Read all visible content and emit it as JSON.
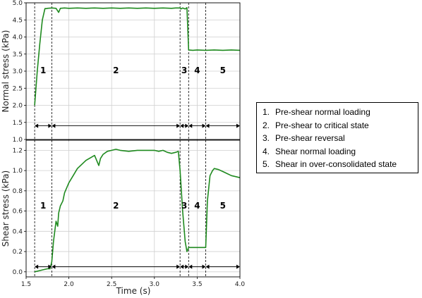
{
  "chart_data": [
    {
      "type": "line",
      "xlabel": "",
      "ylabel": "Normal stress (kPa)",
      "xlim": [
        1.5,
        4.0
      ],
      "ylim": [
        1.0,
        5.0
      ],
      "grid": true,
      "x_ticks": [
        "1.5",
        "2.0",
        "2.5",
        "3.0",
        "3.5",
        "4.0"
      ],
      "y_ticks": [
        "1.0",
        "1.5",
        "2.0",
        "2.5",
        "3.0",
        "3.5",
        "4.0",
        "4.5",
        "5.0"
      ],
      "color": "#1f8a1f",
      "series": [
        {
          "x": [
            1.6,
            1.63,
            1.66,
            1.69,
            1.72,
            1.74,
            1.75,
            1.8,
            1.85,
            1.88,
            1.9,
            1.95,
            2.0,
            2.1,
            2.2,
            2.3,
            2.4,
            2.5,
            2.6,
            2.7,
            2.8,
            2.9,
            3.0,
            3.1,
            3.2,
            3.25,
            3.3,
            3.31,
            3.33,
            3.36,
            3.38,
            3.4,
            3.45,
            3.5,
            3.6,
            3.7,
            3.8,
            3.9,
            4.0
          ],
          "y": [
            2.0,
            3.0,
            3.8,
            4.5,
            4.83,
            4.83,
            4.84,
            4.85,
            4.84,
            4.72,
            4.84,
            4.85,
            4.84,
            4.85,
            4.84,
            4.85,
            4.84,
            4.85,
            4.84,
            4.85,
            4.84,
            4.85,
            4.84,
            4.85,
            4.84,
            4.85,
            4.85,
            4.82,
            4.85,
            4.82,
            4.86,
            3.62,
            3.61,
            3.62,
            3.61,
            3.62,
            3.61,
            3.62,
            3.61
          ]
        }
      ],
      "phases": [
        {
          "label": "1",
          "x0": 1.6,
          "x1": 1.8
        },
        {
          "label": "2",
          "x0": 1.8,
          "x1": 3.3
        },
        {
          "label": "3",
          "x0": 3.3,
          "x1": 3.4
        },
        {
          "label": "4",
          "x0": 3.4,
          "x1": 3.6
        },
        {
          "label": "5",
          "x0": 3.6,
          "x1": 4.0
        }
      ],
      "phase_arrow_y": 1.4
    },
    {
      "type": "line",
      "xlabel": "Time (s)",
      "ylabel": "Shear stress (kPa)",
      "xlim": [
        1.5,
        4.0
      ],
      "ylim": [
        -0.05,
        1.3
      ],
      "grid": true,
      "x_ticks": [
        "1.5",
        "2.0",
        "2.5",
        "3.0",
        "3.5",
        "4.0"
      ],
      "y_ticks": [
        "0.0",
        "0.2",
        "0.4",
        "0.6",
        "0.8",
        "1.0",
        "1.2"
      ],
      "color": "#1f8a1f",
      "series": [
        {
          "x": [
            1.6,
            1.65,
            1.7,
            1.75,
            1.78,
            1.8,
            1.82,
            1.85,
            1.87,
            1.88,
            1.9,
            1.93,
            1.95,
            2.0,
            2.05,
            2.1,
            2.2,
            2.3,
            2.35,
            2.37,
            2.4,
            2.45,
            2.5,
            2.55,
            2.6,
            2.7,
            2.8,
            2.9,
            3.0,
            3.05,
            3.1,
            3.15,
            3.2,
            3.25,
            3.28,
            3.3,
            3.33,
            3.36,
            3.38,
            3.4,
            3.45,
            3.5,
            3.55,
            3.6,
            3.62,
            3.65,
            3.68,
            3.7,
            3.75,
            3.8,
            3.85,
            3.9,
            3.95,
            4.0
          ],
          "y": [
            0.0,
            0.01,
            0.02,
            0.03,
            0.03,
            0.1,
            0.3,
            0.5,
            0.45,
            0.58,
            0.65,
            0.7,
            0.78,
            0.88,
            0.95,
            1.02,
            1.1,
            1.15,
            1.05,
            1.12,
            1.16,
            1.19,
            1.2,
            1.21,
            1.2,
            1.19,
            1.2,
            1.2,
            1.2,
            1.19,
            1.2,
            1.18,
            1.17,
            1.18,
            1.19,
            1.0,
            0.6,
            0.3,
            0.2,
            0.24,
            0.24,
            0.24,
            0.24,
            0.24,
            0.7,
            0.95,
            1.0,
            1.02,
            1.01,
            0.99,
            0.97,
            0.95,
            0.94,
            0.93
          ]
        }
      ],
      "phases": [
        {
          "label": "1",
          "x0": 1.6,
          "x1": 1.8
        },
        {
          "label": "2",
          "x0": 1.8,
          "x1": 3.3
        },
        {
          "label": "3",
          "x0": 3.3,
          "x1": 3.4
        },
        {
          "label": "4",
          "x0": 3.4,
          "x1": 3.6
        },
        {
          "label": "5",
          "x0": 3.6,
          "x1": 4.0
        }
      ],
      "phase_arrow_y": 0.05
    }
  ],
  "legend": {
    "items": [
      {
        "num": "1.",
        "text": "Pre-shear  normal loading"
      },
      {
        "num": "2.",
        "text": "Pre-shear  to critical state"
      },
      {
        "num": "3.",
        "text": "Pre-shear  reversal"
      },
      {
        "num": "4.",
        "text": "Shear normal loading"
      },
      {
        "num": "5.",
        "text": "Shear in over-consolidated  state"
      }
    ]
  }
}
